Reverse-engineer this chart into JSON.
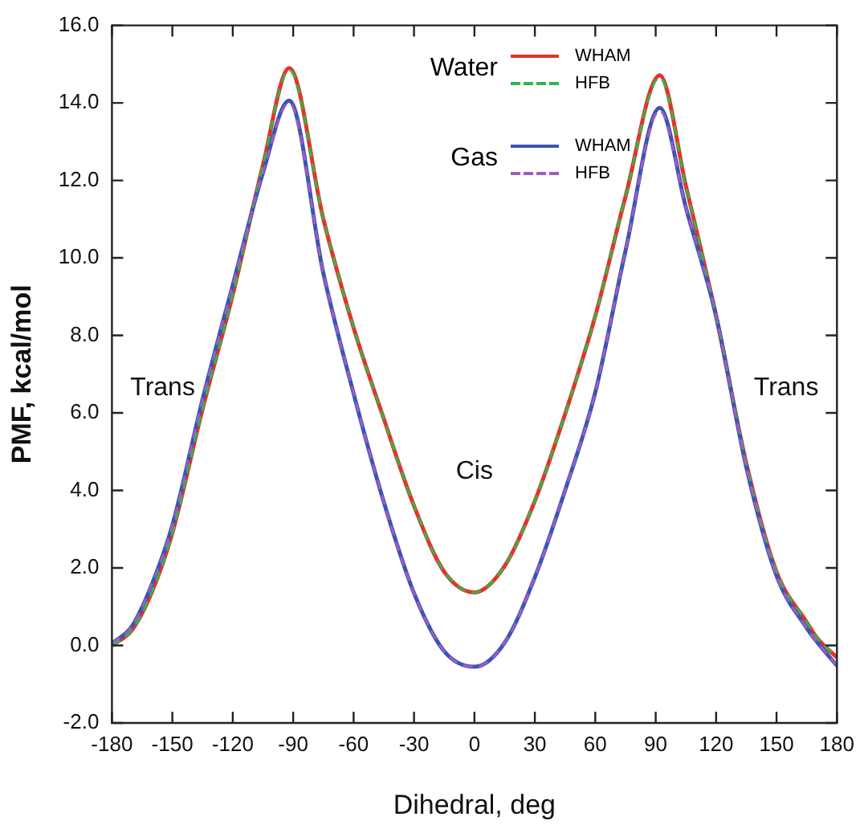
{
  "chart_data": {
    "type": "line",
    "xlabel": "Dihedral, deg",
    "ylabel": "PMF, kcal/mol",
    "x": [
      -180,
      -170,
      -160,
      -150,
      -135,
      -120,
      -105,
      -92,
      -75,
      -60,
      -45,
      -30,
      -15,
      0,
      15,
      30,
      45,
      60,
      75,
      92,
      105,
      120,
      135,
      150,
      165,
      170,
      180
    ],
    "series": [
      {
        "name": "WHAM",
        "color": "#e8302a",
        "line_style": "solid",
        "values": [
          0.0,
          0.4,
          1.4,
          2.9,
          6.1,
          9.05,
          12.4,
          14.9,
          11.0,
          8.2,
          5.85,
          3.6,
          1.9,
          1.37,
          2.05,
          3.73,
          5.97,
          8.5,
          11.58,
          14.71,
          11.86,
          8.5,
          4.7,
          1.9,
          0.6,
          0.2,
          -0.31
        ]
      },
      {
        "name": "HFB",
        "color": "#2db84a",
        "line_style": "dashed",
        "values": [
          0.0,
          0.4,
          1.4,
          2.9,
          6.1,
          9.05,
          12.4,
          14.85,
          11.0,
          8.2,
          5.85,
          3.6,
          1.9,
          1.37,
          2.05,
          3.73,
          5.97,
          8.5,
          11.58,
          14.65,
          11.86,
          8.5,
          4.7,
          1.9,
          0.6,
          0.2,
          -0.3
        ]
      },
      {
        "name": "WHAM",
        "color": "#3a55b4",
        "line_style": "solid",
        "values": [
          0.05,
          0.5,
          1.6,
          3.1,
          6.35,
          9.3,
          12.2,
          14.06,
          9.6,
          6.5,
          3.7,
          1.35,
          -0.15,
          -0.55,
          0.07,
          1.76,
          4.0,
          6.53,
          10.18,
          13.87,
          11.3,
          8.5,
          4.6,
          1.8,
          0.45,
          0.1,
          -0.52
        ]
      },
      {
        "name": "HFB",
        "color": "#a05cc0",
        "line_style": "dashed",
        "values": [
          0.05,
          0.5,
          1.6,
          3.1,
          6.35,
          9.3,
          12.2,
          14.0,
          9.6,
          6.5,
          3.7,
          1.35,
          -0.15,
          -0.55,
          0.07,
          1.76,
          4.0,
          6.53,
          10.18,
          13.8,
          11.3,
          8.5,
          4.6,
          1.8,
          0.45,
          0.1,
          -0.52
        ]
      }
    ],
    "xlim": [
      -180,
      180
    ],
    "xticks": [
      -180,
      -150,
      -120,
      -90,
      -60,
      -30,
      0,
      30,
      60,
      90,
      120,
      150,
      180
    ],
    "ylim": [
      -2,
      16
    ],
    "yticks": [
      {
        "value": -2,
        "label": "-2.0"
      },
      {
        "value": 0,
        "label": "0.0"
      },
      {
        "value": 2,
        "label": "2.0"
      },
      {
        "value": 4,
        "label": "4.0"
      },
      {
        "value": 6,
        "label": "6.0"
      },
      {
        "value": 8,
        "label": "8.0"
      },
      {
        "value": 10,
        "label": "10.0"
      },
      {
        "value": 12,
        "label": "12.0"
      },
      {
        "value": 14,
        "label": "14.0"
      },
      {
        "value": 16,
        "label": "16.0"
      }
    ],
    "annotations": [
      "Water",
      "Gas",
      "Trans",
      "Cis",
      "Trans"
    ],
    "legend": "top",
    "grid": false,
    "marker": "none"
  }
}
